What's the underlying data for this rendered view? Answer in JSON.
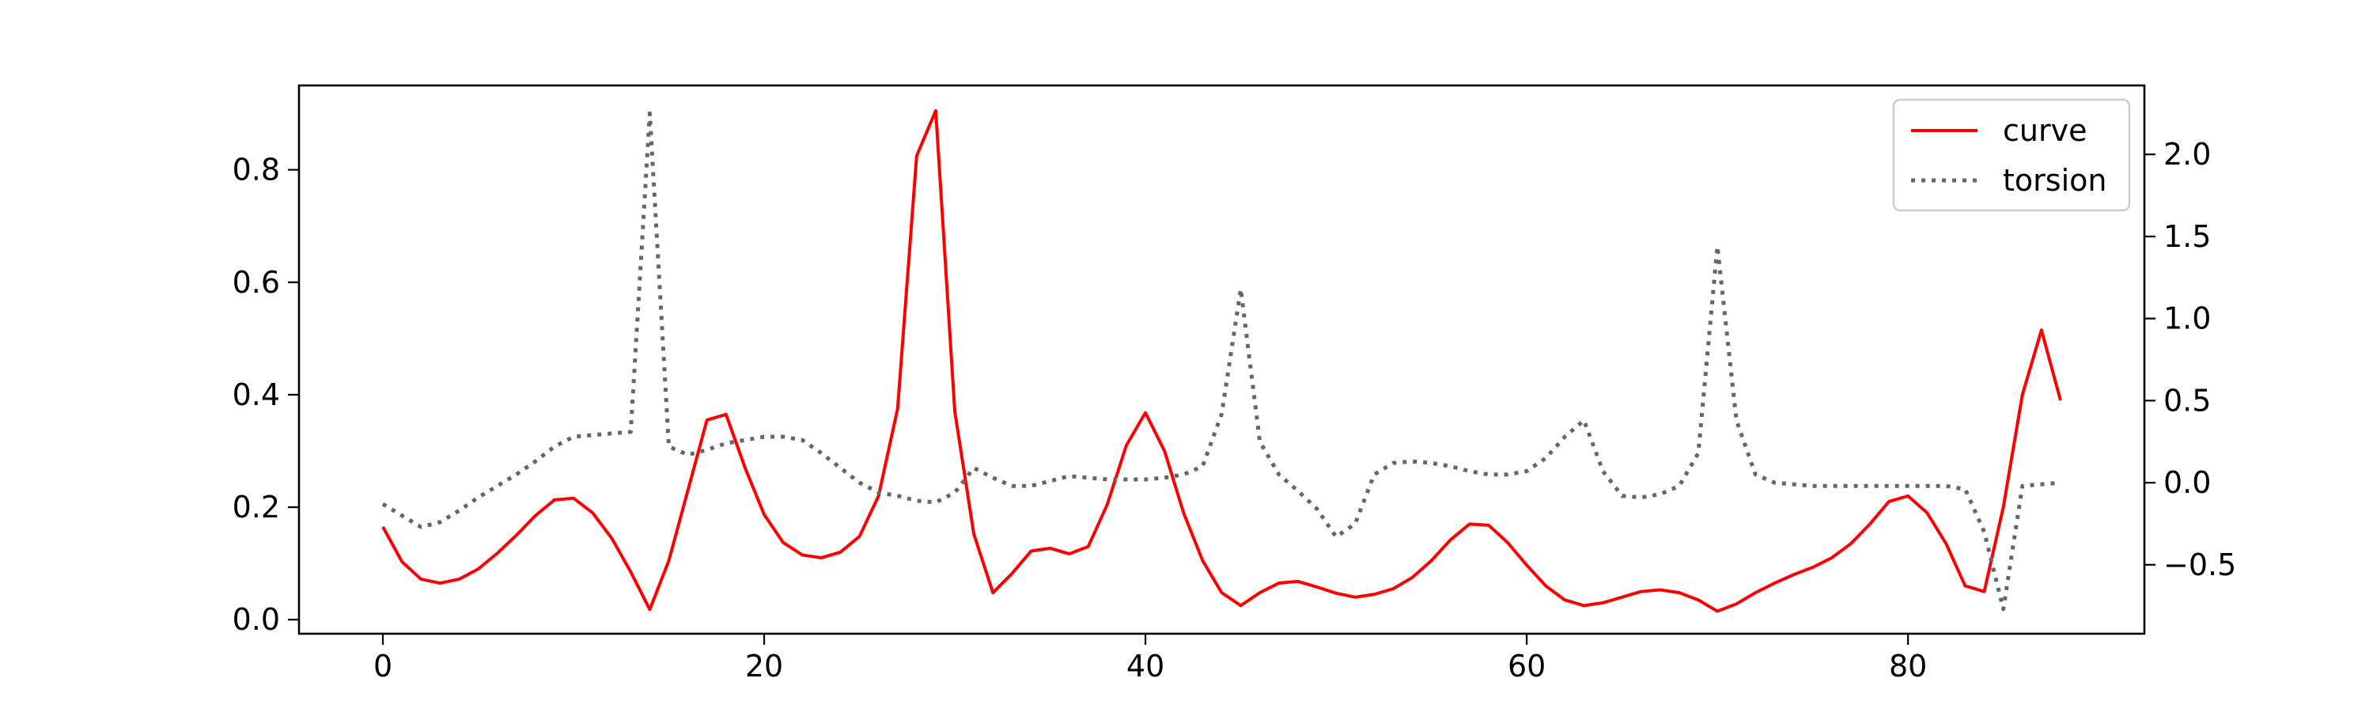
{
  "chart_data": {
    "type": "line",
    "title": "",
    "xlabel": "",
    "ylabel_left": "",
    "ylabel_right": "",
    "xlim": [
      -4.4,
      92.4
    ],
    "ylim_left": [
      -0.025,
      0.95
    ],
    "ylim_right": [
      -0.92,
      2.42
    ],
    "x_ticks": [
      0,
      20,
      40,
      60,
      80
    ],
    "y_left_ticks": [
      0.0,
      0.2,
      0.4,
      0.6,
      0.8
    ],
    "y_right_ticks": [
      -0.5,
      0.0,
      0.5,
      1.0,
      1.5,
      2.0
    ],
    "x_tick_labels": [
      "0",
      "20",
      "40",
      "60",
      "80"
    ],
    "y_left_tick_labels": [
      "0.0",
      "0.2",
      "0.4",
      "0.6",
      "0.8"
    ],
    "y_right_tick_labels": [
      "−0.5",
      "0.0",
      "0.5",
      "1.0",
      "1.5",
      "2.0"
    ],
    "grid": false,
    "legend_position": "top-right",
    "series": [
      {
        "name": "curve",
        "axis": "left",
        "color": "#ff0000",
        "style": "solid",
        "x": [
          0,
          1,
          2,
          3,
          4,
          5,
          6,
          7,
          8,
          9,
          10,
          11,
          12,
          13,
          14,
          15,
          16,
          17,
          18,
          19,
          20,
          21,
          22,
          23,
          24,
          25,
          26,
          27,
          28,
          29,
          30,
          31,
          32,
          33,
          34,
          35,
          36,
          37,
          38,
          39,
          40,
          41,
          42,
          43,
          44,
          45,
          46,
          47,
          48,
          49,
          50,
          51,
          52,
          53,
          54,
          55,
          56,
          57,
          58,
          59,
          60,
          61,
          62,
          63,
          64,
          65,
          66,
          67,
          68,
          69,
          70,
          71,
          72,
          73,
          74,
          75,
          76,
          77,
          78,
          79,
          80,
          81,
          82,
          83,
          84,
          85,
          86,
          87,
          88
        ],
        "values": [
          0.165,
          0.103,
          0.072,
          0.065,
          0.072,
          0.09,
          0.118,
          0.15,
          0.185,
          0.213,
          0.216,
          0.19,
          0.145,
          0.085,
          0.018,
          0.105,
          0.23,
          0.355,
          0.365,
          0.27,
          0.187,
          0.137,
          0.115,
          0.11,
          0.12,
          0.148,
          0.22,
          0.375,
          0.825,
          0.905,
          0.37,
          0.152,
          0.048,
          0.082,
          0.122,
          0.127,
          0.117,
          0.13,
          0.205,
          0.31,
          0.368,
          0.3,
          0.19,
          0.105,
          0.048,
          0.025,
          0.048,
          0.065,
          0.068,
          0.058,
          0.047,
          0.04,
          0.045,
          0.055,
          0.075,
          0.105,
          0.142,
          0.17,
          0.168,
          0.137,
          0.097,
          0.06,
          0.035,
          0.025,
          0.03,
          0.04,
          0.05,
          0.053,
          0.048,
          0.035,
          0.015,
          0.028,
          0.048,
          0.065,
          0.08,
          0.093,
          0.11,
          0.135,
          0.17,
          0.21,
          0.22,
          0.19,
          0.135,
          0.06,
          0.05,
          0.2,
          0.4,
          0.515,
          0.39
        ]
      },
      {
        "name": "torsion",
        "axis": "right",
        "color": "#666666",
        "style": "dotted",
        "x": [
          0,
          1,
          2,
          3,
          4,
          5,
          6,
          7,
          8,
          9,
          10,
          11,
          12,
          13,
          14,
          15,
          16,
          17,
          18,
          19,
          20,
          21,
          22,
          23,
          24,
          25,
          26,
          27,
          28,
          29,
          30,
          31,
          32,
          33,
          34,
          35,
          36,
          37,
          38,
          39,
          40,
          41,
          42,
          43,
          44,
          45,
          46,
          47,
          48,
          49,
          50,
          51,
          52,
          53,
          54,
          55,
          56,
          57,
          58,
          59,
          60,
          61,
          62,
          63,
          64,
          65,
          66,
          67,
          68,
          69,
          70,
          71,
          72,
          73,
          74,
          75,
          76,
          77,
          78,
          79,
          80,
          81,
          82,
          83,
          84,
          85,
          86,
          87,
          88
        ],
        "values": [
          -0.13,
          -0.2,
          -0.27,
          -0.24,
          -0.17,
          -0.09,
          -0.02,
          0.05,
          0.13,
          0.22,
          0.28,
          0.29,
          0.3,
          0.31,
          2.25,
          0.22,
          0.17,
          0.2,
          0.24,
          0.26,
          0.28,
          0.28,
          0.26,
          0.18,
          0.09,
          0.0,
          -0.06,
          -0.08,
          -0.11,
          -0.12,
          -0.06,
          0.09,
          0.03,
          -0.02,
          -0.02,
          0.01,
          0.04,
          0.03,
          0.02,
          0.02,
          0.02,
          0.03,
          0.05,
          0.1,
          0.42,
          1.18,
          0.25,
          0.05,
          -0.05,
          -0.16,
          -0.33,
          -0.25,
          0.05,
          0.12,
          0.13,
          0.12,
          0.1,
          0.07,
          0.05,
          0.05,
          0.07,
          0.15,
          0.28,
          0.38,
          0.07,
          -0.08,
          -0.09,
          -0.07,
          -0.02,
          0.18,
          1.44,
          0.38,
          0.05,
          0.0,
          -0.01,
          -0.02,
          -0.02,
          -0.02,
          -0.02,
          -0.02,
          -0.02,
          -0.02,
          -0.02,
          -0.04,
          -0.3,
          -0.77,
          -0.02,
          -0.01,
          0.0
        ]
      }
    ]
  }
}
